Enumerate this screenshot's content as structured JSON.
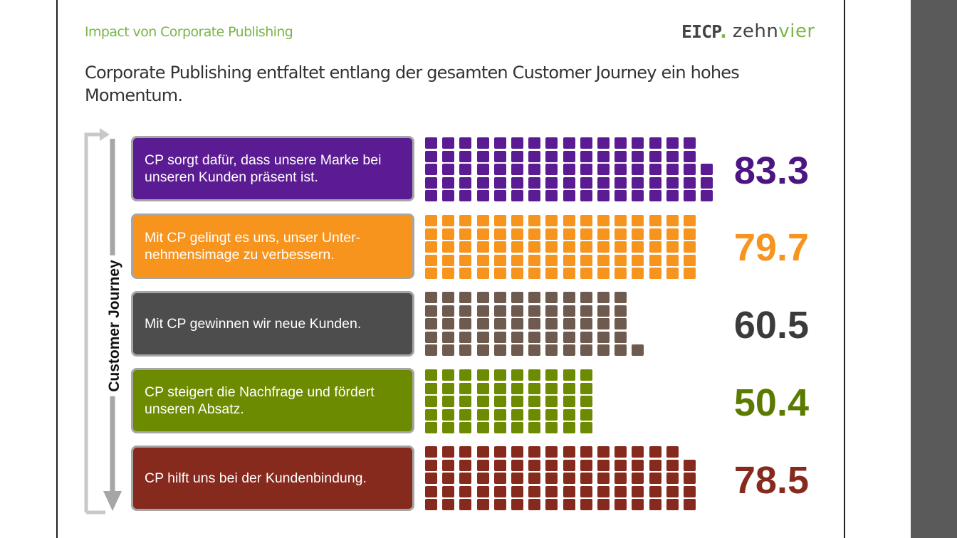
{
  "header": {
    "subtitle": "Impact von Corporate Publishing",
    "logo": {
      "mark": "EICP",
      "dot": ".",
      "zehn": "zehn",
      "vier": "vier"
    },
    "headline": "Corporate Publishing entfaltet entlang der gesamten Customer Journey ein hohes Momentum."
  },
  "colors": {
    "accent": "#7ab648",
    "purple": "#5b1b93",
    "orange": "#f7941d",
    "darkgray": "#4d4d4d",
    "brown": "#6e5a4e",
    "olive": "#6d8b00",
    "maroon": "#862a1e"
  },
  "chart_data": {
    "type": "table",
    "title": "Corporate Publishing entfaltet entlang der gesamten Customer Journey ein hohes Momentum.",
    "axis_label": "Customer Journey",
    "categories": [
      "CP sorgt dafür, dass unsere Marke bei unseren Kunden präsent ist.",
      "Mit CP gelingt es uns, unser Unter-nehmensimage zu verbessern.",
      "Mit CP gewinnen wir neue Kunden.",
      "CP steigert die Nachfrage und fördert unseren Absatz.",
      "CP hilft uns bei der Kundenbindung."
    ],
    "rows": [
      {
        "label_lines": [
          "CP sorgt dafür, dass unsere Marke bei",
          "unseren Kunden präsent ist."
        ],
        "value": 83.3,
        "value_text": "83.3",
        "box_color": "#5b1b93",
        "cell_color": "#5b1b93",
        "value_color": "#4b1681"
      },
      {
        "label_lines": [
          "Mit CP gelingt es uns, unser Unter-",
          "nehmensimage zu verbessern."
        ],
        "value": 79.7,
        "value_text": "79.7",
        "box_color": "#f7941d",
        "cell_color": "#f7941d",
        "value_color": "#f7941d"
      },
      {
        "label_lines": [
          "Mit CP gewinnen wir neue Kunden."
        ],
        "value": 60.5,
        "value_text": "60.5",
        "box_color": "#4d4d4d",
        "cell_color": "#6e5a4e",
        "value_color": "#3b3b3b"
      },
      {
        "label_lines": [
          "CP steigert die Nachfrage und fördert",
          "unseren Absatz."
        ],
        "value": 50.4,
        "value_text": "50.4",
        "box_color": "#6d8b00",
        "cell_color": "#6d8b00",
        "value_color": "#5b7a00"
      },
      {
        "label_lines": [
          "CP hilft uns bei der Kundenbindung."
        ],
        "value": 78.5,
        "value_text": "78.5",
        "box_color": "#862a1e",
        "cell_color": "#862a1e",
        "value_color": "#862a1e"
      }
    ],
    "unit": "",
    "max": 100
  }
}
